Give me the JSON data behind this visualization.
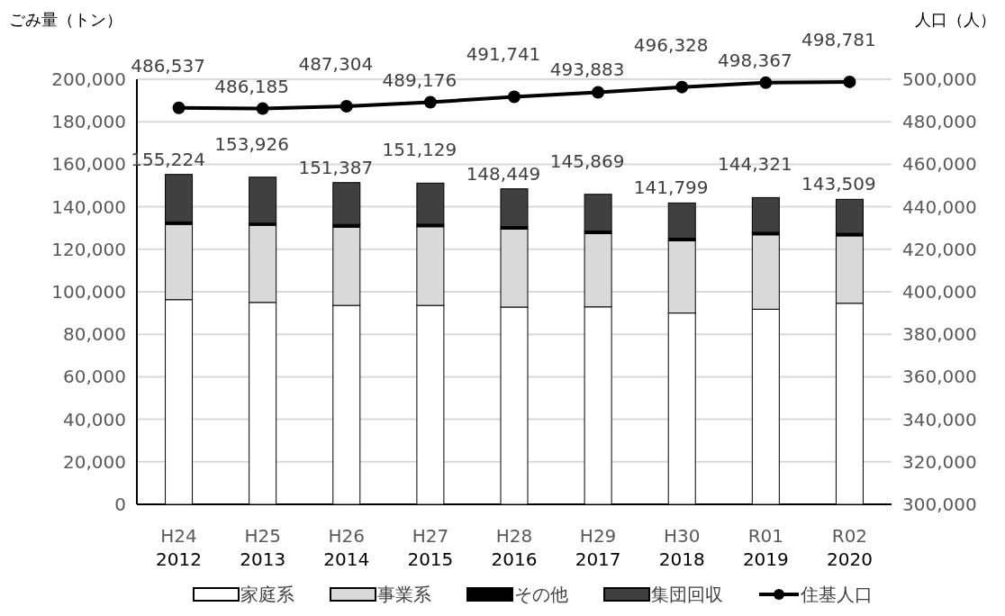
{
  "chart_data": {
    "type": "bar",
    "stacked": true,
    "ylabel": "ごみ量（トン）",
    "y2label": "人口（人）",
    "categories": [
      "H24\n2012",
      "H25\n2013",
      "H26\n2014",
      "H27\n2015",
      "H28\n2016",
      "H29\n2017",
      "H30\n2018",
      "R01\n2019",
      "R02\n2020"
    ],
    "series": [
      {
        "name": "家庭系",
        "color": "#ffffff",
        "values": [
          96300,
          95000,
          93600,
          93600,
          92800,
          92900,
          90000,
          91800,
          94600
        ]
      },
      {
        "name": "事業系",
        "color": "#d9d9d9",
        "values": [
          35400,
          36300,
          36800,
          37000,
          36700,
          34500,
          34000,
          35000,
          31700
        ]
      },
      {
        "name": "その他",
        "color": "#000000",
        "values": [
          1200,
          1000,
          1300,
          1200,
          1200,
          1200,
          1200,
          1200,
          1200
        ]
      },
      {
        "name": "集団回収",
        "color": "#404040",
        "values": [
          22324,
          21626,
          19687,
          19329,
          17749,
          17269,
          16599,
          16321,
          16009
        ]
      },
      {
        "name": "住基人口",
        "type": "line",
        "axis": "y2",
        "color": "#000000",
        "marker": "circle",
        "values": [
          486537,
          486185,
          487304,
          489176,
          491741,
          493883,
          496328,
          498367,
          498781
        ],
        "value_labels": [
          "486,537",
          "486,185",
          "487,304",
          "489,176",
          "491,741",
          "493,883",
          "496,328",
          "498,367",
          "498,781"
        ]
      }
    ],
    "totals": [
      "155,224",
      "153,926",
      "151,387",
      "151,129",
      "148,449",
      "145,869",
      "141,799",
      "144,321",
      "143,509"
    ],
    "ylim": [
      0,
      200000
    ],
    "yticks": [
      {
        "value": 0,
        "label": "0"
      },
      {
        "value": 20000,
        "label": "20,000"
      },
      {
        "value": 40000,
        "label": "40,000"
      },
      {
        "value": 60000,
        "label": "60,000"
      },
      {
        "value": 80000,
        "label": "80,000"
      },
      {
        "value": 100000,
        "label": "100,000"
      },
      {
        "value": 120000,
        "label": "120,000"
      },
      {
        "value": 140000,
        "label": "140,000"
      },
      {
        "value": 160000,
        "label": "160,000"
      },
      {
        "value": 180000,
        "label": "180,000"
      },
      {
        "value": 200000,
        "label": "200,000"
      }
    ],
    "y2lim": [
      300000,
      500000
    ],
    "y2ticks": [
      {
        "value": 300000,
        "label": "300,000"
      },
      {
        "value": 320000,
        "label": "320,000"
      },
      {
        "value": 340000,
        "label": "340,000"
      },
      {
        "value": 360000,
        "label": "360,000"
      },
      {
        "value": 380000,
        "label": "380,000"
      },
      {
        "value": 400000,
        "label": "400,000"
      },
      {
        "value": 420000,
        "label": "420,000"
      },
      {
        "value": 440000,
        "label": "440,000"
      },
      {
        "value": 460000,
        "label": "460,000"
      },
      {
        "value": 480000,
        "label": "480,000"
      },
      {
        "value": 500000,
        "label": "500,000"
      }
    ],
    "grid": "y",
    "legend": "bottom"
  }
}
